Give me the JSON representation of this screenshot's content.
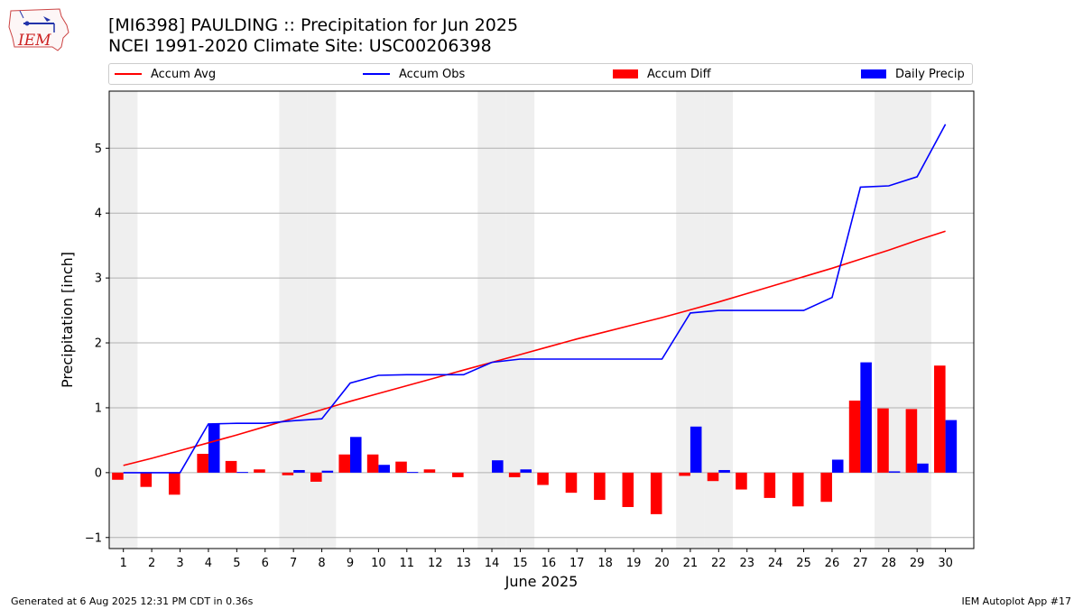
{
  "header": {
    "title_line1": "[MI6398] PAULDING :: Precipitation for Jun 2025",
    "title_line2": "NCEI 1991-2020 Climate Site: USC00206398"
  },
  "logo": {
    "text": "IEM",
    "icon": "iem-logo"
  },
  "legend": {
    "items": [
      {
        "label": "Accum Avg",
        "kind": "line",
        "color": "#ff0000"
      },
      {
        "label": "Accum Obs",
        "kind": "line",
        "color": "#0000ff"
      },
      {
        "label": "Accum Diff",
        "kind": "bar",
        "color": "#ff0000"
      },
      {
        "label": "Daily Precip",
        "kind": "bar",
        "color": "#0000ff"
      }
    ]
  },
  "chart_data": {
    "type": "bar",
    "xlabel": "June 2025",
    "ylabel": "Precipitation [inch]",
    "ylim": [
      -1.17,
      5.88
    ],
    "yticks": [
      -1,
      0,
      1,
      2,
      3,
      4,
      5
    ],
    "grid": "horizontal",
    "legend_position": "top",
    "weekend_shading_days": [
      1,
      7,
      8,
      14,
      15,
      21,
      22,
      28,
      29
    ],
    "categories": [
      "1",
      "2",
      "3",
      "4",
      "5",
      "6",
      "7",
      "8",
      "9",
      "10",
      "11",
      "12",
      "13",
      "14",
      "15",
      "16",
      "17",
      "18",
      "19",
      "20",
      "21",
      "22",
      "23",
      "24",
      "25",
      "26",
      "27",
      "28",
      "29",
      "30"
    ],
    "series": [
      {
        "name": "Accum Avg",
        "kind": "line",
        "color": "#ff0000",
        "values": [
          0.11,
          0.22,
          0.34,
          0.46,
          0.58,
          0.71,
          0.84,
          0.97,
          1.1,
          1.22,
          1.34,
          1.46,
          1.58,
          1.7,
          1.82,
          1.94,
          2.06,
          2.17,
          2.28,
          2.39,
          2.51,
          2.63,
          2.76,
          2.89,
          3.02,
          3.15,
          3.29,
          3.43,
          3.58,
          3.72
        ]
      },
      {
        "name": "Accum Obs",
        "kind": "line",
        "color": "#0000ff",
        "values": [
          0.0,
          0.0,
          0.0,
          0.75,
          0.76,
          0.76,
          0.8,
          0.83,
          1.38,
          1.5,
          1.51,
          1.51,
          1.51,
          1.7,
          1.75,
          1.75,
          1.75,
          1.75,
          1.75,
          1.75,
          2.46,
          2.5,
          2.5,
          2.5,
          2.5,
          2.7,
          4.4,
          4.42,
          4.56,
          5.37
        ]
      },
      {
        "name": "Accum Diff",
        "kind": "bar",
        "color": "#ff0000",
        "values": [
          -0.11,
          -0.22,
          -0.34,
          0.29,
          0.18,
          0.05,
          -0.04,
          -0.14,
          0.28,
          0.28,
          0.17,
          0.05,
          -0.07,
          0.0,
          -0.07,
          -0.19,
          -0.31,
          -0.42,
          -0.53,
          -0.64,
          -0.05,
          -0.13,
          -0.26,
          -0.39,
          -0.52,
          -0.45,
          1.11,
          0.99,
          0.98,
          1.65
        ]
      },
      {
        "name": "Daily Precip",
        "kind": "bar",
        "color": "#0000ff",
        "values": [
          0.0,
          0.0,
          0.0,
          0.75,
          0.01,
          0.0,
          0.04,
          0.03,
          0.55,
          0.12,
          0.01,
          0.0,
          0.0,
          0.19,
          0.05,
          0.0,
          0.0,
          0.0,
          0.0,
          0.0,
          0.71,
          0.04,
          0.0,
          0.0,
          0.0,
          0.2,
          1.7,
          0.02,
          0.14,
          0.81
        ]
      }
    ]
  },
  "footer": {
    "left": "Generated at 6 Aug 2025 12:31 PM CDT in 0.36s",
    "right": "IEM Autoplot App #17"
  }
}
